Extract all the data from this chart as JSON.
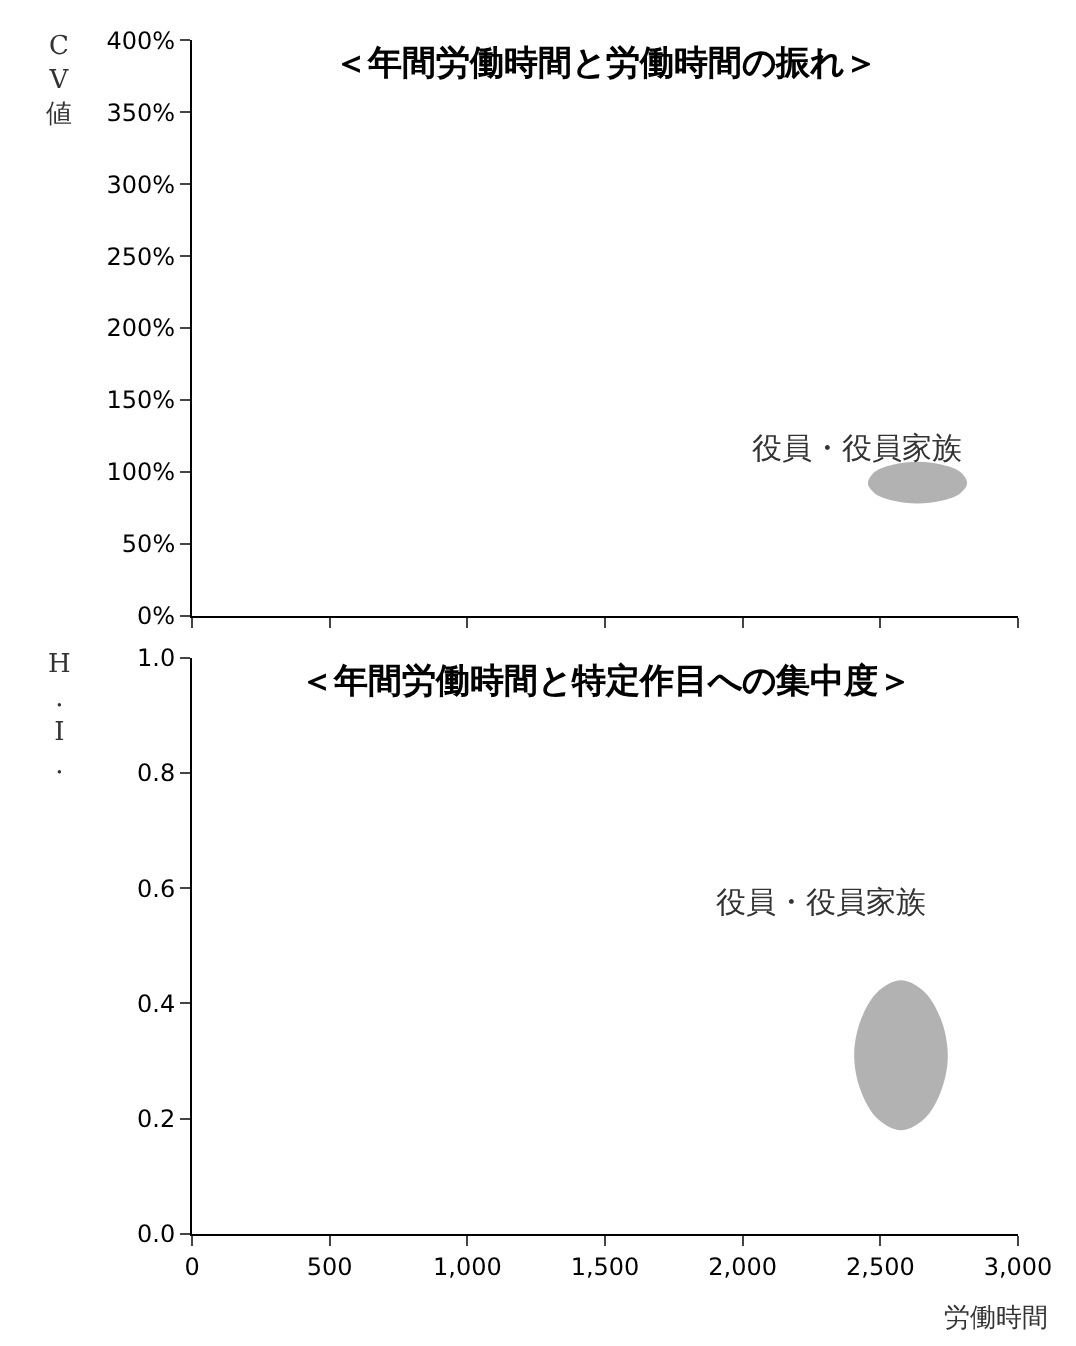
{
  "chart_data": [
    {
      "type": "area",
      "title": "＜年間労働時間と労働時間の振れ＞",
      "ylabel": "CV値",
      "xlim": [
        0,
        3000
      ],
      "xticks": [
        0,
        500,
        1000,
        1500,
        2000,
        2500,
        3000
      ],
      "ylim": [
        0,
        400
      ],
      "yticks": [
        {
          "value": 0,
          "label": "0%"
        },
        {
          "value": 50,
          "label": "50%"
        },
        {
          "value": 100,
          "label": "100%"
        },
        {
          "value": 150,
          "label": "150%"
        },
        {
          "value": 200,
          "label": "200%"
        },
        {
          "value": 250,
          "label": "250%"
        },
        {
          "value": 300,
          "label": "300%"
        },
        {
          "value": 350,
          "label": "350%"
        },
        {
          "value": 400,
          "label": "400%"
        }
      ],
      "tick_labels": "y",
      "series": [
        {
          "color": "#b2b2b2",
          "x": [
            2815,
            2790,
            2725,
            2635,
            2545,
            2480,
            2455,
            2480,
            2545,
            2635,
            2725,
            2790
          ],
          "values": [
            92,
            100,
            105,
            107,
            105,
            100,
            92,
            85,
            80,
            78,
            80,
            85
          ]
        }
      ],
      "annotations": [
        "役員・役員家族"
      ]
    },
    {
      "type": "area",
      "title": "＜年間労働時間と特定作目への集中度＞",
      "ylabel": "H.I.",
      "xlabel": "労働時間",
      "xlim": [
        0,
        3000
      ],
      "xticks": [
        0,
        500,
        {
          "value": 1000,
          "label": "1,000"
        },
        {
          "value": 1500,
          "label": "1,500"
        },
        {
          "value": 2000,
          "label": "2,000"
        },
        {
          "value": 2500,
          "label": "2,500"
        },
        {
          "value": 3000,
          "label": "3,000"
        }
      ],
      "ylim": [
        0,
        1.0
      ],
      "yticks": [
        {
          "value": 0,
          "label": "0.0"
        },
        0.2,
        0.4,
        0.6,
        0.8,
        {
          "value": 1.0,
          "label": "1.0"
        }
      ],
      "series": [
        {
          "color": "#b2b2b2",
          "x": [
            2745,
            2722,
            2660,
            2575,
            2490,
            2428,
            2405,
            2428,
            2490,
            2575,
            2660,
            2722
          ],
          "values": [
            0.31,
            0.37,
            0.42,
            0.44,
            0.42,
            0.37,
            0.31,
            0.25,
            0.2,
            0.18,
            0.2,
            0.25
          ]
        }
      ],
      "annotations": [
        "役員・役員家族"
      ]
    }
  ]
}
